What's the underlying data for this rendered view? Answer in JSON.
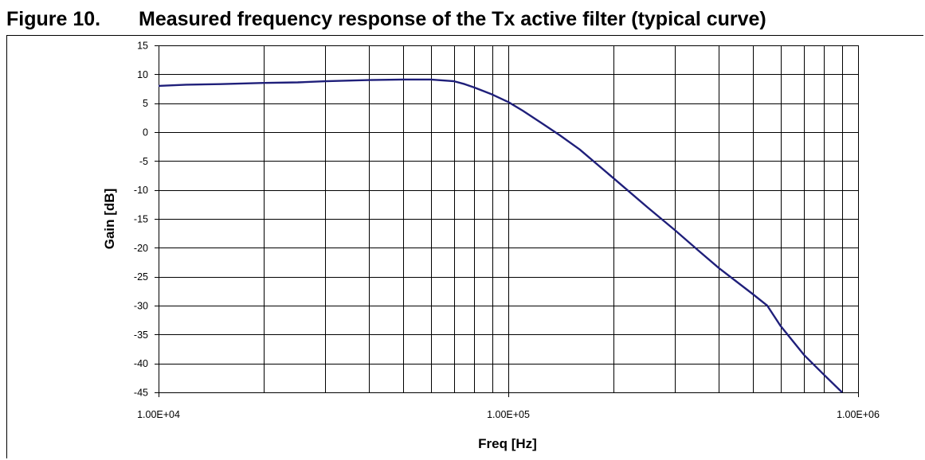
{
  "caption": {
    "figure_number": "Figure 10.",
    "title": "Measured frequency response of the Tx active filter (typical curve)"
  },
  "chart_data": {
    "type": "line",
    "title": "",
    "xlabel": "Freq [Hz]",
    "ylabel": "Gain [dB]",
    "xscale": "log",
    "xlim": [
      10000,
      1000000
    ],
    "ylim": [
      -45,
      15
    ],
    "grid": true,
    "legend": "none",
    "x_tick_labels": [
      "1.00E+04",
      "1.00E+05",
      "1.00E+06"
    ],
    "x_tick_values": [
      10000,
      100000,
      1000000
    ],
    "y_ticks": [
      15,
      10,
      5,
      0,
      -5,
      -10,
      -15,
      -20,
      -25,
      -30,
      -35,
      -40,
      -45
    ],
    "line_color": "#1f1f7a",
    "series": [
      {
        "x": [
          10000,
          12000,
          15000,
          20000,
          25000,
          30000,
          40000,
          50000,
          60000,
          70000,
          75000,
          80000,
          90000,
          100000,
          110000,
          125000,
          140000,
          160000,
          200000,
          250000,
          300000,
          350000,
          400000,
          500000,
          550000,
          600000,
          700000,
          800000,
          900000
        ],
        "y": [
          8,
          8.2,
          8.3,
          8.5,
          8.6,
          8.8,
          9,
          9.1,
          9.1,
          8.8,
          8.3,
          7.7,
          6.5,
          5.2,
          3.7,
          1.5,
          -0.5,
          -3,
          -8,
          -13,
          -17,
          -20.5,
          -23.5,
          -28,
          -30,
          -33.5,
          -38.5,
          -42,
          -45
        ]
      }
    ]
  }
}
